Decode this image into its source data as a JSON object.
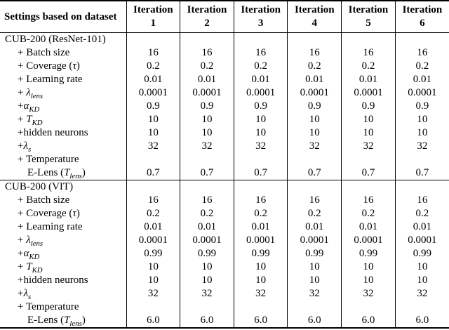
{
  "colors": {
    "background": "#ffffff",
    "text": "#000000",
    "rule": "#000000"
  },
  "table": {
    "corner_header": "Settings based on dataset",
    "iteration_headers": [
      {
        "line1": "Iteration",
        "line2": "1"
      },
      {
        "line1": "Iteration",
        "line2": "2"
      },
      {
        "line1": "Iteration",
        "line2": "3"
      },
      {
        "line1": "Iteration",
        "line2": "4"
      },
      {
        "line1": "Iteration",
        "line2": "5"
      },
      {
        "line1": "Iteration",
        "line2": "6"
      }
    ],
    "sections": [
      {
        "title": "CUB-200 (ResNet-101)",
        "rows": [
          {
            "label": "+ Batch size",
            "values": [
              "16",
              "16",
              "16",
              "16",
              "16",
              "16"
            ]
          },
          {
            "label": "+ Coverage (*τ*)",
            "values": [
              "0.2",
              "0.2",
              "0.2",
              "0.2",
              "0.2",
              "0.2"
            ]
          },
          {
            "label": "+ Learning rate",
            "values": [
              "0.01",
              "0.01",
              "0.01",
              "0.01",
              "0.01",
              "0.01"
            ]
          },
          {
            "label": "+ *λ*_{lens}",
            "values": [
              "0.0001",
              "0.0001",
              "0.0001",
              "0.0001",
              "0.0001",
              "0.0001"
            ]
          },
          {
            "label": "+*α*_{KD}",
            "values": [
              "0.9",
              "0.9",
              "0.9",
              "0.9",
              "0.9",
              "0.9"
            ]
          },
          {
            "label": "+ *T*_{KD}",
            "values": [
              "10",
              "10",
              "10",
              "10",
              "10",
              "10"
            ]
          },
          {
            "label": "+hidden neurons",
            "values": [
              "10",
              "10",
              "10",
              "10",
              "10",
              "10"
            ]
          },
          {
            "label": "+*λ*_{s}",
            "values": [
              "32",
              "32",
              "32",
              "32",
              "32",
              "32"
            ]
          },
          {
            "label": "+ Temperature",
            "label2": "E-Lens (*T*_{lens})",
            "values": [
              "0.7",
              "0.7",
              "0.7",
              "0.7",
              "0.7",
              "0.7"
            ]
          }
        ]
      },
      {
        "title": "CUB-200 (VIT)",
        "rows": [
          {
            "label": "+ Batch size",
            "values": [
              "16",
              "16",
              "16",
              "16",
              "16",
              "16"
            ]
          },
          {
            "label": "+ Coverage (*τ*)",
            "values": [
              "0.2",
              "0.2",
              "0.2",
              "0.2",
              "0.2",
              "0.2"
            ]
          },
          {
            "label": "+ Learning rate",
            "values": [
              "0.01",
              "0.01",
              "0.01",
              "0.01",
              "0.01",
              "0.01"
            ]
          },
          {
            "label": "+ *λ*_{lens}",
            "values": [
              "0.0001",
              "0.0001",
              "0.0001",
              "0.0001",
              "0.0001",
              "0.0001"
            ]
          },
          {
            "label": "+*α*_{KD}",
            "values": [
              "0.99",
              "0.99",
              "0.99",
              "0.99",
              "0.99",
              "0.99"
            ]
          },
          {
            "label": "+ *T*_{KD}",
            "values": [
              "10",
              "10",
              "10",
              "10",
              "10",
              "10"
            ]
          },
          {
            "label": "+hidden neurons",
            "values": [
              "10",
              "10",
              "10",
              "10",
              "10",
              "10"
            ]
          },
          {
            "label": "+*λ*_{s}",
            "values": [
              "32",
              "32",
              "32",
              "32",
              "32",
              "32"
            ]
          },
          {
            "label": "+ Temperature",
            "label2": "E-Lens (*T*_{lens})",
            "values": [
              "6.0",
              "6.0",
              "6.0",
              "6.0",
              "6.0",
              "6.0"
            ]
          }
        ]
      }
    ]
  }
}
